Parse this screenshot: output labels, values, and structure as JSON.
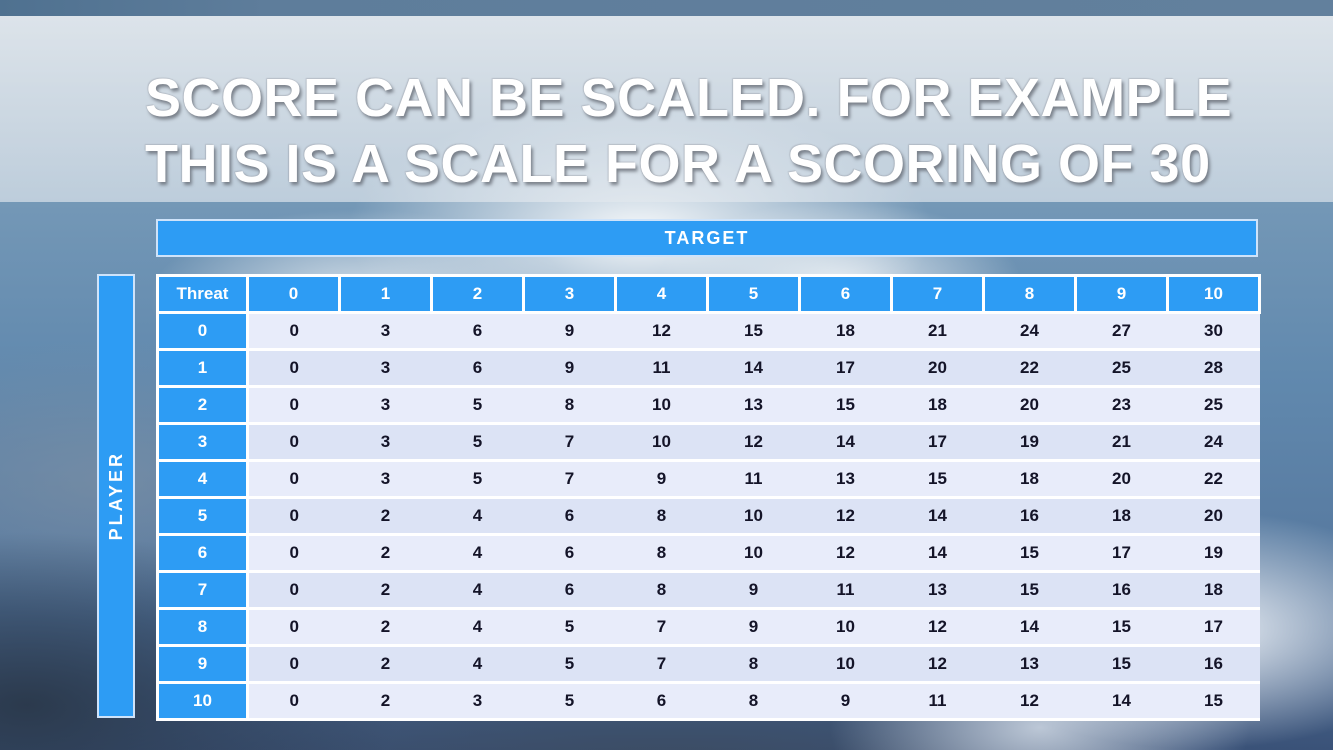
{
  "slide": {
    "title_line1": "SCORE CAN BE SCALED. FOR EXAMPLE",
    "title_line2": "THIS IS A SCALE FOR A SCORING OF 30"
  },
  "table": {
    "target_label": "TARGET",
    "player_label": "PLAYER",
    "corner_label": "Threat",
    "col_headers": [
      "0",
      "1",
      "2",
      "3",
      "4",
      "5",
      "6",
      "7",
      "8",
      "9",
      "10"
    ],
    "row_headers": [
      "0",
      "1",
      "2",
      "3",
      "4",
      "5",
      "6",
      "7",
      "8",
      "9",
      "10"
    ],
    "rows": [
      [
        0,
        3,
        6,
        9,
        12,
        15,
        18,
        21,
        24,
        27,
        30
      ],
      [
        0,
        3,
        6,
        9,
        11,
        14,
        17,
        20,
        22,
        25,
        28
      ],
      [
        0,
        3,
        5,
        8,
        10,
        13,
        15,
        18,
        20,
        23,
        25
      ],
      [
        0,
        3,
        5,
        7,
        10,
        12,
        14,
        17,
        19,
        21,
        24
      ],
      [
        0,
        3,
        5,
        7,
        9,
        11,
        13,
        15,
        18,
        20,
        22
      ],
      [
        0,
        2,
        4,
        6,
        8,
        10,
        12,
        14,
        16,
        18,
        20
      ],
      [
        0,
        2,
        4,
        6,
        8,
        10,
        12,
        14,
        15,
        17,
        19
      ],
      [
        0,
        2,
        4,
        6,
        8,
        9,
        11,
        13,
        15,
        16,
        18
      ],
      [
        0,
        2,
        4,
        5,
        7,
        9,
        10,
        12,
        14,
        15,
        17
      ],
      [
        0,
        2,
        4,
        5,
        7,
        8,
        10,
        12,
        13,
        15,
        16
      ],
      [
        0,
        2,
        3,
        5,
        6,
        8,
        9,
        11,
        12,
        14,
        15
      ]
    ]
  },
  "colors": {
    "header_blue": "#2d9cf4",
    "row_light": "#e8ecfa",
    "row_dark": "#dce3f5"
  }
}
